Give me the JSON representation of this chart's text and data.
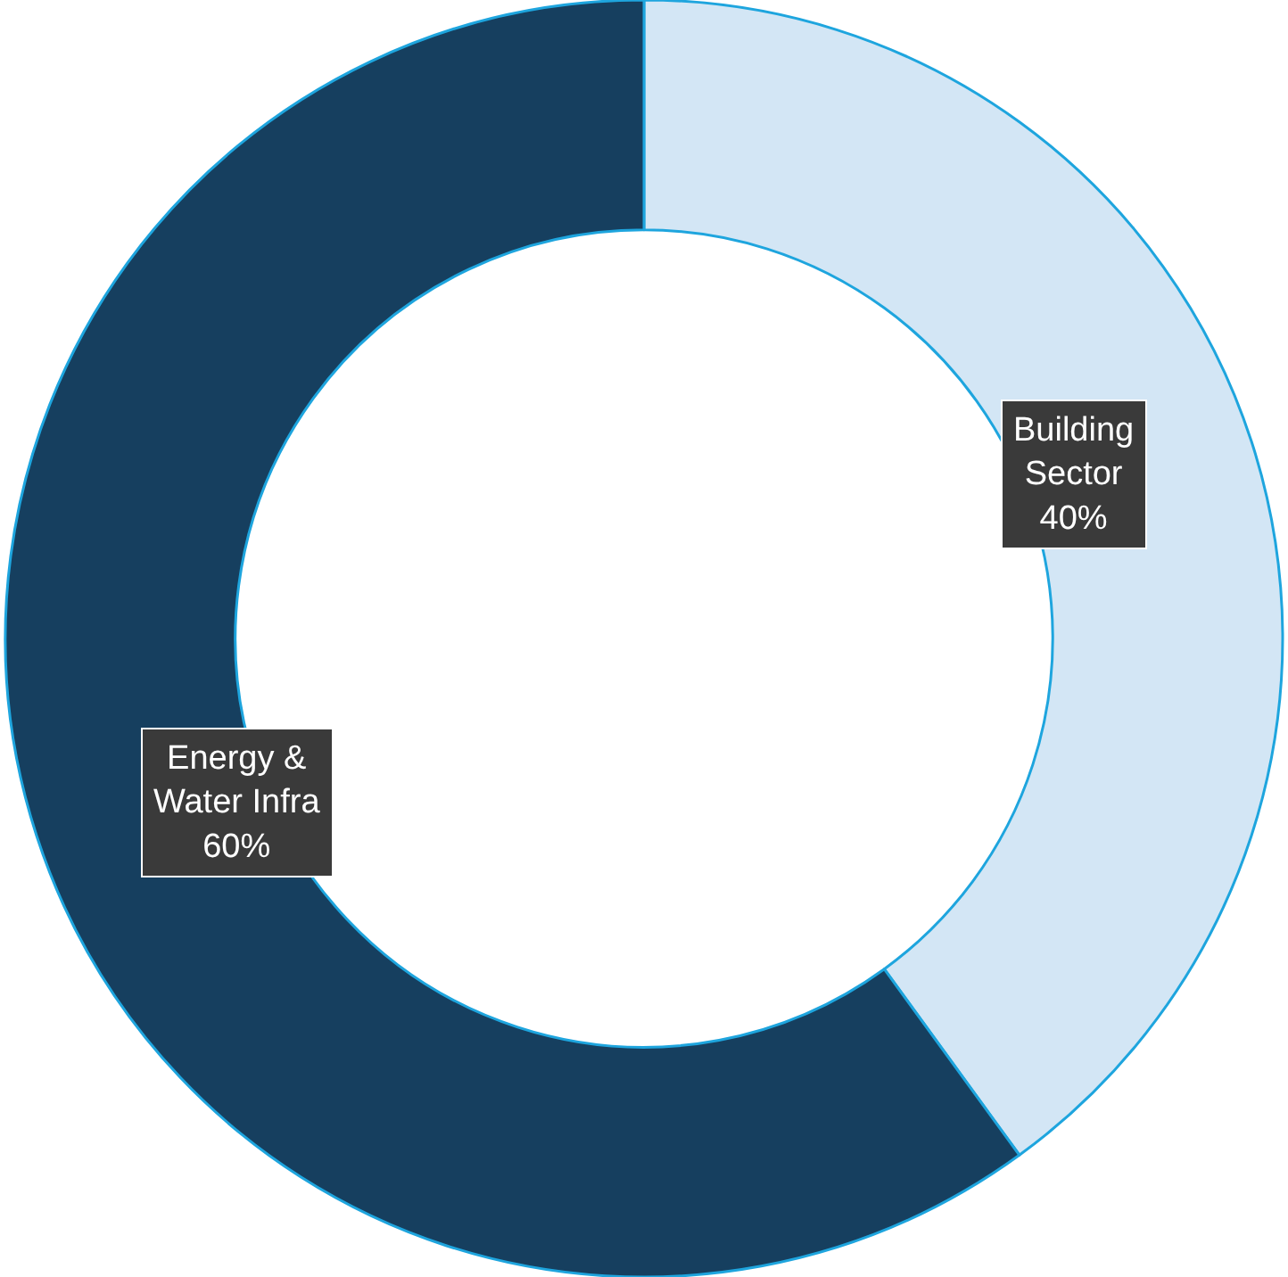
{
  "chart_data": {
    "type": "donut",
    "categories": [
      "Building Sector",
      "Energy & Water Infra"
    ],
    "values": [
      40,
      60
    ],
    "value_labels": [
      "40%",
      "60%"
    ],
    "colors": [
      "#d3e6f5",
      "#163f5f"
    ],
    "legend": false
  }
}
